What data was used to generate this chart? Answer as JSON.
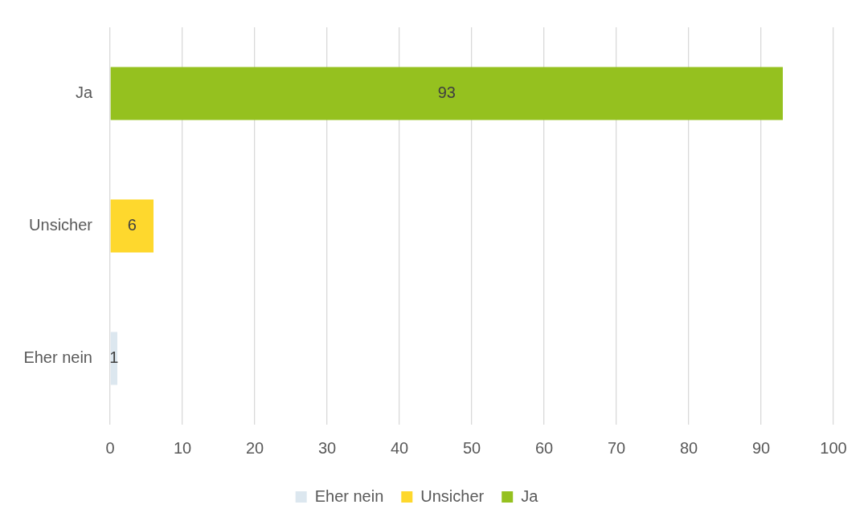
{
  "chart_data": {
    "type": "bar",
    "orientation": "horizontal",
    "categories": [
      "Ja",
      "Unsicher",
      "Eher nein"
    ],
    "series": [
      {
        "name": "Eher nein",
        "color": "#dce7ef",
        "values": [
          null,
          null,
          1
        ]
      },
      {
        "name": "Unsicher",
        "color": "#fed82d",
        "values": [
          null,
          6,
          null
        ]
      },
      {
        "name": "Ja",
        "color": "#95c11f",
        "values": [
          93,
          null,
          null
        ]
      }
    ],
    "xlim": [
      0,
      100
    ],
    "xticks": [
      0,
      10,
      20,
      30,
      40,
      50,
      60,
      70,
      80,
      90,
      100
    ],
    "grid": "x",
    "legend": "bottom",
    "data_labels": true
  }
}
